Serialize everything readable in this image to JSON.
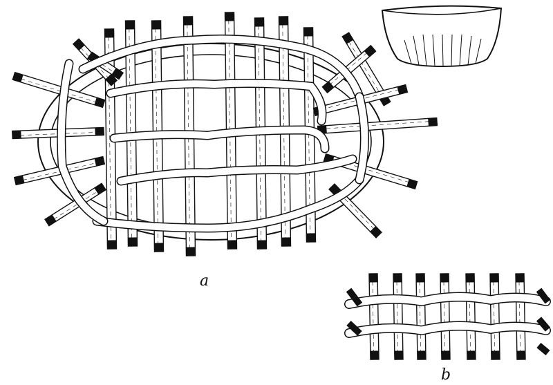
{
  "figure": {
    "labels": {
      "a": "a",
      "b": "b"
    }
  },
  "colors": {
    "ink": "#111111",
    "paper": "#ffffff"
  },
  "icons": {
    "main": "basket-base-weave-diagram",
    "inset": "finished-bowl-basket-icon",
    "detail": "weave-detail-diagram"
  }
}
